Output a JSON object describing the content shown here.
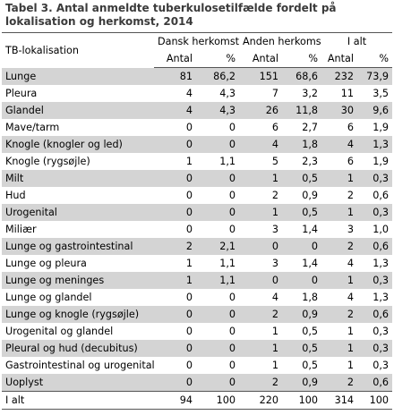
{
  "caption": "Tabel 3. Antal anmeldte tuberkulosetilfælde fordelt på lokalisation og herkomst, 2014",
  "headers": {
    "row_label": "TB-lokalisation",
    "groups": [
      "Dansk herkomst",
      "Anden herkomst",
      "I alt"
    ],
    "sub": [
      "Antal",
      "%",
      "Antal",
      "%",
      "Antal",
      "%"
    ]
  },
  "rows": [
    [
      "Lunge",
      "81",
      "86,2",
      "151",
      "68,6",
      "232",
      "73,9"
    ],
    [
      "Pleura",
      "4",
      "4,3",
      "7",
      "3,2",
      "11",
      "3,5"
    ],
    [
      "Glandel",
      "4",
      "4,3",
      "26",
      "11,8",
      "30",
      "9,6"
    ],
    [
      "Mave/tarm",
      "0",
      "0",
      "6",
      "2,7",
      "6",
      "1,9"
    ],
    [
      "Knogle (knogler og led)",
      "0",
      "0",
      "4",
      "1,8",
      "4",
      "1,3"
    ],
    [
      "Knogle (rygsøjle)",
      "1",
      "1,1",
      "5",
      "2,3",
      "6",
      "1,9"
    ],
    [
      "Milt",
      "0",
      "0",
      "1",
      "0,5",
      "1",
      "0,3"
    ],
    [
      "Hud",
      "0",
      "0",
      "2",
      "0,9",
      "2",
      "0,6"
    ],
    [
      "Urogenital",
      "0",
      "0",
      "1",
      "0,5",
      "1",
      "0,3"
    ],
    [
      "Miliær",
      "0",
      "0",
      "3",
      "1,4",
      "3",
      "1,0"
    ],
    [
      "Lunge og gastrointestinal",
      "2",
      "2,1",
      "0",
      "0",
      "2",
      "0,6"
    ],
    [
      "Lunge og pleura",
      "1",
      "1,1",
      "3",
      "1,4",
      "4",
      "1,3"
    ],
    [
      "Lunge og meninges",
      "1",
      "1,1",
      "0",
      "0",
      "1",
      "0,3"
    ],
    [
      "Lunge og glandel",
      "0",
      "0",
      "4",
      "1,8",
      "4",
      "1,3"
    ],
    [
      "Lunge og knogle (rygsøjle)",
      "0",
      "0",
      "2",
      "0,9",
      "2",
      "0,6"
    ],
    [
      "Urogenital og glandel",
      "0",
      "0",
      "1",
      "0,5",
      "1",
      "0,3"
    ],
    [
      "Pleural og hud (decubitus)",
      "0",
      "0",
      "1",
      "0,5",
      "1",
      "0,3"
    ],
    [
      "Gastrointestinal og urogenital",
      "0",
      "0",
      "1",
      "0,5",
      "1",
      "0,3"
    ],
    [
      "Uoplyst",
      "0",
      "0",
      "2",
      "0,9",
      "2",
      "0,6"
    ]
  ],
  "total": [
    "I alt",
    "94",
    "100",
    "220",
    "100",
    "314",
    "100"
  ],
  "colors": {
    "shade": "#d4d4d4",
    "caption_text": "#3b3b3b",
    "rule": "#555555"
  }
}
